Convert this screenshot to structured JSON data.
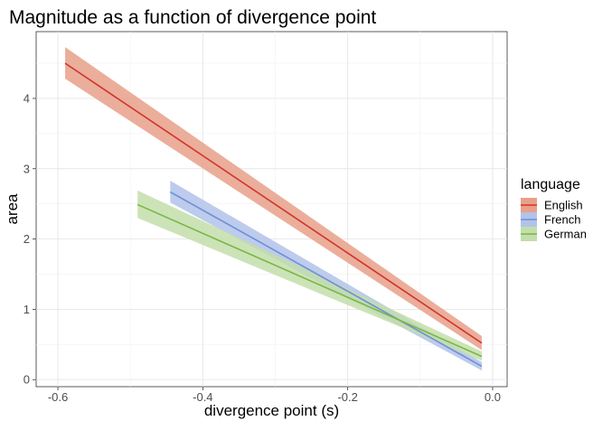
{
  "chart_data": {
    "type": "line",
    "title": "Magnitude as a function of divergence point",
    "xlabel": "divergence point (s)",
    "ylabel": "area",
    "xlim": [
      -0.63,
      0.02
    ],
    "ylim": [
      -0.1,
      4.95
    ],
    "x_ticks": [
      -0.6,
      -0.4,
      -0.2,
      0.0
    ],
    "x_tick_labels": [
      "-0.6",
      "-0.4",
      "-0.2",
      "0.0"
    ],
    "y_ticks": [
      0,
      1,
      2,
      3,
      4
    ],
    "y_tick_labels": [
      "0",
      "1",
      "2",
      "3",
      "4"
    ],
    "grid": true,
    "legend": {
      "title": "language",
      "position": "right"
    },
    "series": [
      {
        "name": "English",
        "color": "#d0342c",
        "fill": "#e8a08a",
        "x": [
          -0.59,
          -0.015
        ],
        "y": [
          4.5,
          0.52
        ],
        "lower": [
          4.28,
          0.42
        ],
        "upper": [
          4.73,
          0.62
        ]
      },
      {
        "name": "French",
        "color": "#6f8fd6",
        "fill": "#b2c2ea",
        "x": [
          -0.445,
          -0.015
        ],
        "y": [
          2.67,
          0.19
        ],
        "lower": [
          2.52,
          0.13
        ],
        "upper": [
          2.83,
          0.25
        ]
      },
      {
        "name": "German",
        "color": "#7ab648",
        "fill": "#c3deaa",
        "x": [
          -0.49,
          -0.015
        ],
        "y": [
          2.49,
          0.33
        ],
        "lower": [
          2.3,
          0.27
        ],
        "upper": [
          2.69,
          0.4
        ]
      }
    ]
  }
}
